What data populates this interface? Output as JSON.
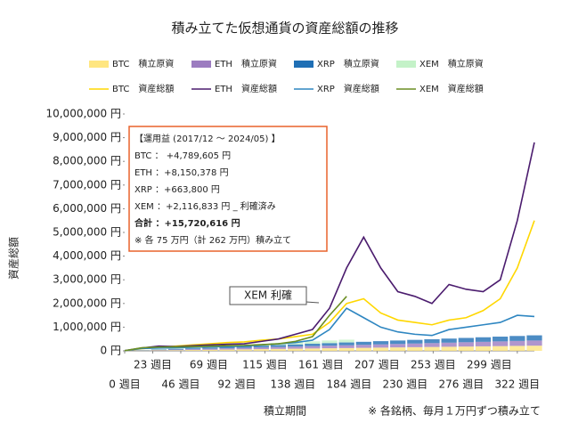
{
  "chart_data": {
    "type": "line",
    "title": "積み立てた仮想通貨の資産総額の推移",
    "x_label": "積立期間",
    "y_label": "資産総額",
    "note": "※ 各銘柄、毎月１万円ずつ積み立て",
    "annotation": [
      "【運用益 (2017/12 ～ 2024/05) 】",
      "BTC ： +4,789,605 円",
      "ETH ：+8,150,378 円",
      "XRP ：+663,800 円",
      "XEM ：+2,116,833 円 _ 利確済み",
      "合計 ：+15,720,616 円",
      "※ 各 75 万円（計 262 万円）積み立て"
    ],
    "callout": "XEM 利確",
    "x": [
      0,
      14,
      28,
      42,
      56,
      70,
      84,
      98,
      112,
      126,
      140,
      154,
      168,
      182,
      196,
      210,
      224,
      238,
      252,
      266,
      280,
      294,
      308,
      322,
      336
    ],
    "xlim": [
      0,
      336
    ],
    "xticks": [
      {
        "value": 0,
        "label": "0 週目"
      },
      {
        "value": 23,
        "label": "23 週目"
      },
      {
        "value": 46,
        "label": "46 週目"
      },
      {
        "value": 69,
        "label": "69 週目"
      },
      {
        "value": 92,
        "label": "92 週目"
      },
      {
        "value": 115,
        "label": "115 週目"
      },
      {
        "value": 138,
        "label": "138 週目"
      },
      {
        "value": 161,
        "label": "161 週目"
      },
      {
        "value": 184,
        "label": "184 週目"
      },
      {
        "value": 207,
        "label": "207 週目"
      },
      {
        "value": 230,
        "label": "230 週目"
      },
      {
        "value": 253,
        "label": "253 週目"
      },
      {
        "value": 276,
        "label": "276 週目"
      },
      {
        "value": 299,
        "label": "299 週目"
      },
      {
        "value": 322,
        "label": "322 週目"
      }
    ],
    "ylim": [
      0,
      10000000
    ],
    "yticks": [
      {
        "value": 0,
        "label": "0 円"
      },
      {
        "value": 1000000,
        "label": "1,000,000 円"
      },
      {
        "value": 2000000,
        "label": "2,000,000 円"
      },
      {
        "value": 3000000,
        "label": "3,000,000 円"
      },
      {
        "value": 4000000,
        "label": "4,000,000 円"
      },
      {
        "value": 5000000,
        "label": "5,000,000 円"
      },
      {
        "value": 6000000,
        "label": "6,000,000 円"
      },
      {
        "value": 7000000,
        "label": "7,000,000 円"
      },
      {
        "value": 8000000,
        "label": "8,000,000 円"
      },
      {
        "value": 9000000,
        "label": "9,000,000 円"
      },
      {
        "value": 10000000,
        "label": "10,000,000 円"
      }
    ],
    "cost_series": [
      {
        "name": "BTC　積立原資",
        "color": "#ffe680",
        "values": [
          0,
          9100,
          18200,
          27300,
          36400,
          45500,
          54600,
          63700,
          72800,
          81900,
          91000,
          100100,
          109200,
          118300,
          127400,
          136500,
          145600,
          154700,
          163800,
          172900,
          182000,
          191100,
          200200,
          209300,
          218400
        ]
      },
      {
        "name": "ETH　積立原資",
        "color": "#9c7cc0",
        "values": [
          0,
          9100,
          18200,
          27300,
          36400,
          45500,
          54600,
          63700,
          72800,
          81900,
          91000,
          100100,
          109200,
          118300,
          127400,
          136500,
          145600,
          154700,
          163800,
          172900,
          182000,
          191100,
          200200,
          209300,
          218400
        ]
      },
      {
        "name": "XRP　積立原資",
        "color": "#1f6fb5",
        "values": [
          0,
          9100,
          18200,
          27300,
          36400,
          45500,
          54600,
          63700,
          72800,
          81900,
          91000,
          100100,
          109200,
          118300,
          127400,
          136500,
          145600,
          154700,
          163800,
          172900,
          182000,
          191100,
          200200,
          209300,
          218400
        ]
      },
      {
        "name": "XEM　積立原資",
        "color": "#c4f2c8",
        "values": [
          0,
          9100,
          18200,
          27300,
          36400,
          45500,
          54600,
          63700,
          72800,
          81900,
          91000,
          100100,
          109200,
          118300,
          0,
          0,
          0,
          0,
          0,
          0,
          0,
          0,
          0,
          0,
          0
        ]
      }
    ],
    "series": [
      {
        "name": "BTC　資産総額",
        "color": "#ffd700",
        "values": [
          10000,
          90000,
          150000,
          200000,
          250000,
          300000,
          350000,
          380000,
          450000,
          500000,
          600000,
          700000,
          1200000,
          2000000,
          2200000,
          1600000,
          1300000,
          1200000,
          1100000,
          1300000,
          1400000,
          1700000,
          2200000,
          3500000,
          5500000
        ]
      },
      {
        "name": "ETH　資産総額",
        "color": "#4b1c6e",
        "values": [
          10000,
          120000,
          200000,
          180000,
          220000,
          250000,
          280000,
          300000,
          400000,
          500000,
          700000,
          900000,
          1800000,
          3500000,
          4800000,
          3500000,
          2500000,
          2300000,
          2000000,
          2800000,
          2600000,
          2500000,
          3000000,
          5500000,
          8800000
        ]
      },
      {
        "name": "XRP　資産総額",
        "color": "#2e86c1",
        "values": [
          10000,
          100000,
          120000,
          130000,
          150000,
          170000,
          180000,
          200000,
          250000,
          300000,
          350000,
          450000,
          900000,
          1800000,
          1400000,
          1000000,
          800000,
          700000,
          650000,
          900000,
          1000000,
          1100000,
          1200000,
          1500000,
          1450000
        ]
      },
      {
        "name": "XEM　資産総額",
        "color": "#6b8e23",
        "values": [
          10000,
          130000,
          160000,
          170000,
          180000,
          200000,
          220000,
          230000,
          260000,
          300000,
          400000,
          600000,
          1500000,
          2300000,
          null,
          null,
          null,
          null,
          null,
          null,
          null,
          null,
          null,
          null,
          null
        ]
      }
    ]
  }
}
